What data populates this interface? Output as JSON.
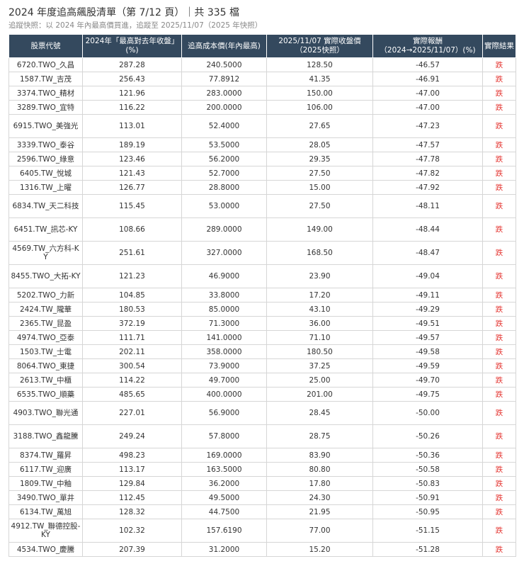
{
  "header": {
    "title": "2024 年度追高飆股清單（第 7/12 頁）｜共 335 檔",
    "subtitle": "追蹤快照：以 2024 年內最高價買進，追蹤至 2025/11/07（2025 年快照）"
  },
  "columns": [
    "股票代號",
    "2024年「最高對去年收盤」(%)",
    "追高成本價(年內最高)",
    "2025/11/07 實際收盤價（2025快照）",
    "實際報酬（2024→2025/11/07）(%)",
    "實際結果"
  ],
  "rows": [
    {
      "code": "6720.TWO_久昌",
      "pct": "287.28",
      "cost": "240.5000",
      "close": "128.50",
      "ret": "-46.57",
      "result": "跌"
    },
    {
      "code": "1587.TW_吉茂",
      "pct": "256.43",
      "cost": "77.8912",
      "close": "41.35",
      "ret": "-46.91",
      "result": "跌"
    },
    {
      "code": "3374.TWO_精材",
      "pct": "121.96",
      "cost": "283.0000",
      "close": "150.00",
      "ret": "-47.00",
      "result": "跌"
    },
    {
      "code": "3289.TWO_宜特",
      "pct": "116.22",
      "cost": "200.0000",
      "close": "106.00",
      "ret": "-47.00",
      "result": "跌"
    },
    {
      "code": "6915.TWO_美強光",
      "pct": "113.01",
      "cost": "52.4000",
      "close": "27.65",
      "ret": "-47.23",
      "result": "跌",
      "tall": true
    },
    {
      "code": "3339.TWO_泰谷",
      "pct": "189.19",
      "cost": "53.5000",
      "close": "28.05",
      "ret": "-47.57",
      "result": "跌"
    },
    {
      "code": "2596.TWO_綠意",
      "pct": "123.46",
      "cost": "56.2000",
      "close": "29.35",
      "ret": "-47.78",
      "result": "跌"
    },
    {
      "code": "6405.TW_悅城",
      "pct": "121.43",
      "cost": "52.7000",
      "close": "27.50",
      "ret": "-47.82",
      "result": "跌"
    },
    {
      "code": "1316.TW_上曜",
      "pct": "126.77",
      "cost": "28.8000",
      "close": "15.00",
      "ret": "-47.92",
      "result": "跌"
    },
    {
      "code": "6834.TW_天二科技",
      "pct": "115.45",
      "cost": "53.0000",
      "close": "27.50",
      "ret": "-48.11",
      "result": "跌",
      "tall": true
    },
    {
      "code": "6451.TW_訊芯-KY",
      "pct": "108.66",
      "cost": "289.0000",
      "close": "149.00",
      "ret": "-48.44",
      "result": "跌",
      "tall": true
    },
    {
      "code": "4569.TW_六方科-KY",
      "pct": "251.61",
      "cost": "327.0000",
      "close": "168.50",
      "ret": "-48.47",
      "result": "跌",
      "tall": true
    },
    {
      "code": "8455.TWO_大拓-KY",
      "pct": "121.23",
      "cost": "46.9000",
      "close": "23.90",
      "ret": "-49.04",
      "result": "跌",
      "tall": true
    },
    {
      "code": "5202.TWO_力新",
      "pct": "104.85",
      "cost": "33.8000",
      "close": "17.20",
      "ret": "-49.11",
      "result": "跌"
    },
    {
      "code": "2424.TW_隴華",
      "pct": "180.53",
      "cost": "85.0000",
      "close": "43.10",
      "ret": "-49.29",
      "result": "跌"
    },
    {
      "code": "2365.TW_昆盈",
      "pct": "372.19",
      "cost": "71.3000",
      "close": "36.00",
      "ret": "-49.51",
      "result": "跌"
    },
    {
      "code": "4974.TWO_亞泰",
      "pct": "111.71",
      "cost": "141.0000",
      "close": "71.10",
      "ret": "-49.57",
      "result": "跌"
    },
    {
      "code": "1503.TW_士電",
      "pct": "202.11",
      "cost": "358.0000",
      "close": "180.50",
      "ret": "-49.58",
      "result": "跌"
    },
    {
      "code": "8064.TWO_東捷",
      "pct": "300.54",
      "cost": "73.9000",
      "close": "37.25",
      "ret": "-49.59",
      "result": "跌"
    },
    {
      "code": "2613.TW_中櫃",
      "pct": "114.22",
      "cost": "49.7000",
      "close": "25.00",
      "ret": "-49.70",
      "result": "跌"
    },
    {
      "code": "6535.TWO_順藥",
      "pct": "485.65",
      "cost": "400.0000",
      "close": "201.00",
      "ret": "-49.75",
      "result": "跌"
    },
    {
      "code": "4903.TWO_聯光通",
      "pct": "227.01",
      "cost": "56.9000",
      "close": "28.45",
      "ret": "-50.00",
      "result": "跌",
      "tall": true
    },
    {
      "code": "3188.TWO_鑫龍騰",
      "pct": "249.24",
      "cost": "57.8000",
      "close": "28.75",
      "ret": "-50.26",
      "result": "跌",
      "tall": true
    },
    {
      "code": "8374.TW_羅昇",
      "pct": "498.23",
      "cost": "169.0000",
      "close": "83.90",
      "ret": "-50.36",
      "result": "跌"
    },
    {
      "code": "6117.TW_迎廣",
      "pct": "113.17",
      "cost": "163.5000",
      "close": "80.80",
      "ret": "-50.58",
      "result": "跌"
    },
    {
      "code": "1809.TW_中釉",
      "pct": "129.84",
      "cost": "36.2000",
      "close": "17.80",
      "ret": "-50.83",
      "result": "跌"
    },
    {
      "code": "3490.TWO_單井",
      "pct": "112.45",
      "cost": "49.5000",
      "close": "24.30",
      "ret": "-50.91",
      "result": "跌"
    },
    {
      "code": "6134.TW_萬旭",
      "pct": "128.32",
      "cost": "44.7500",
      "close": "21.95",
      "ret": "-50.95",
      "result": "跌"
    },
    {
      "code": "4912.TW_聯德控股-KY",
      "pct": "102.32",
      "cost": "157.6190",
      "close": "77.00",
      "ret": "-51.15",
      "result": "跌",
      "tall": true
    },
    {
      "code": "4534.TWO_慶騰",
      "pct": "207.39",
      "cost": "31.2000",
      "close": "15.20",
      "ret": "-51.28",
      "result": "跌"
    }
  ]
}
